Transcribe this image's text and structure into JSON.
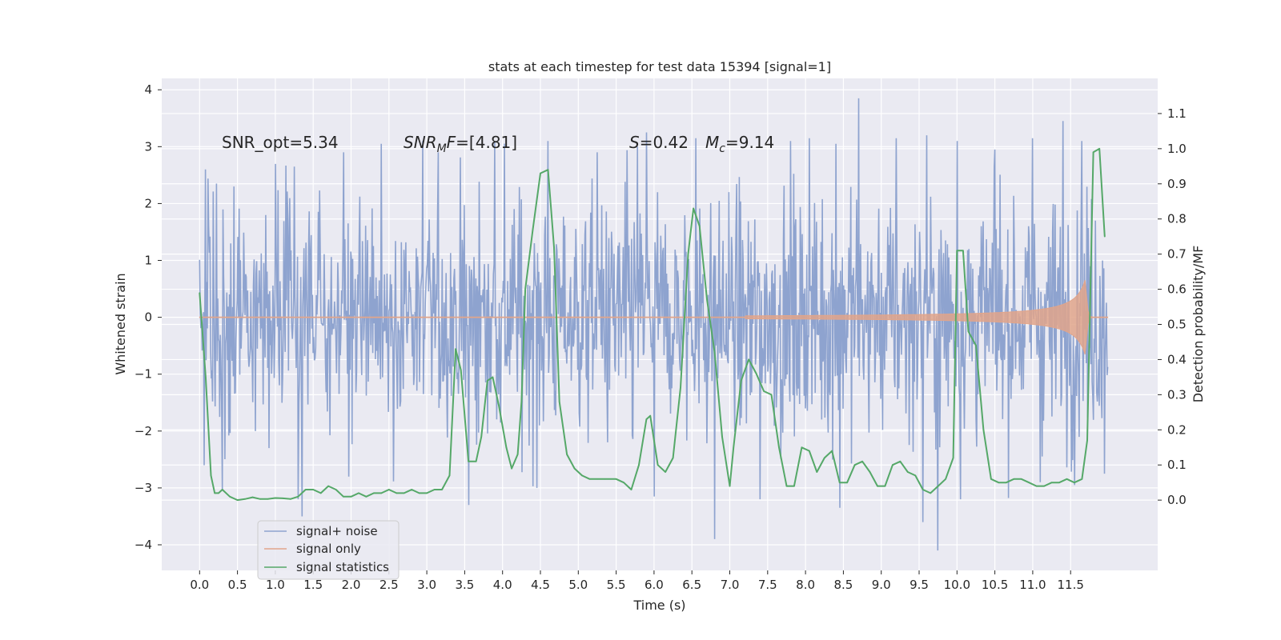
{
  "chart_data": {
    "type": "line",
    "title": "stats at each timestep for test data 15394 [signal=1]",
    "xlabel": "Time (s)",
    "ylabel": "Whitened strain",
    "y2label": "Detection probability/MF",
    "xlim": [
      -0.5,
      12.65
    ],
    "ylim": [
      -4.45,
      4.2
    ],
    "y2lim": [
      -0.2,
      1.2
    ],
    "x_ticks": [
      0.0,
      0.5,
      1.0,
      1.5,
      2.0,
      2.5,
      3.0,
      3.5,
      4.0,
      4.5,
      5.0,
      5.5,
      6.0,
      6.5,
      7.0,
      7.5,
      8.0,
      8.5,
      9.0,
      9.5,
      10.0,
      10.5,
      11.0,
      11.5
    ],
    "x_tick_labels": [
      "0.0",
      "0.5",
      "1.0",
      "1.5",
      "2.0",
      "2.5",
      "3.0",
      "3.5",
      "4.0",
      "4.5",
      "5.0",
      "5.5",
      "6.0",
      "6.5",
      "7.0",
      "7.5",
      "8.0",
      "8.5",
      "9.0",
      "9.5",
      "10.0",
      "10.5",
      "11.0",
      "11.5"
    ],
    "y_ticks": [
      4,
      3,
      2,
      1,
      0,
      -1,
      -2,
      -3,
      -4
    ],
    "y_tick_labels": [
      "4",
      "3",
      "2",
      "1",
      "0",
      "−1",
      "−2",
      "−3",
      "−4"
    ],
    "y2_ticks": [
      1.1,
      1.0,
      0.9,
      0.8,
      0.7,
      0.6,
      0.5,
      0.4,
      0.3,
      0.2,
      0.1,
      0.0
    ],
    "y2_tick_labels": [
      "1.1",
      "1.0",
      "0.9",
      "0.8",
      "0.7",
      "0.6",
      "0.5",
      "0.4",
      "0.3",
      "0.2",
      "0.1",
      "0.0"
    ],
    "grid": true,
    "legend_position": "lower-left",
    "annotations": {
      "snr_opt": "SNR_opt=5.34",
      "snr_mf_sym": "SNR",
      "snr_mf_sub": "M",
      "snr_mf_rest": "F",
      "snr_mf_value": "=[4.81]",
      "s_sym": "S",
      "s_value": "=0.42",
      "mc_sym": "M",
      "mc_sub": "c",
      "mc_value": "=9.14"
    },
    "series": [
      {
        "name": "signal+ noise",
        "color": "#8ea3cf",
        "axis": "left",
        "kind": "noise",
        "x_range": [
          0.0,
          11.99
        ],
        "typical_amplitude": 1.2,
        "upper_peaks": [
          [
            0.08,
            2.6
          ],
          [
            0.22,
            2.35
          ],
          [
            0.45,
            2.3
          ],
          [
            1.25,
            2.65
          ],
          [
            1.9,
            2.9
          ],
          [
            2.4,
            3.05
          ],
          [
            2.95,
            3.1
          ],
          [
            3.15,
            2.9
          ],
          [
            3.9,
            3.1
          ],
          [
            4.6,
            3.1
          ],
          [
            5.25,
            2.9
          ],
          [
            5.78,
            3.0
          ],
          [
            5.9,
            3.25
          ],
          [
            6.55,
            3.15
          ],
          [
            7.8,
            3.1
          ],
          [
            8.05,
            3.15
          ],
          [
            8.4,
            3.05
          ],
          [
            8.7,
            3.85
          ],
          [
            9.2,
            3.15
          ],
          [
            9.6,
            3.2
          ],
          [
            10.0,
            3.1
          ],
          [
            10.5,
            2.95
          ],
          [
            11.0,
            3.15
          ],
          [
            11.4,
            3.45
          ],
          [
            11.65,
            3.1
          ]
        ],
        "lower_peaks": [
          [
            0.06,
            -2.6
          ],
          [
            0.3,
            -3.05
          ],
          [
            1.3,
            -3.2
          ],
          [
            1.35,
            -3.5
          ],
          [
            3.55,
            -3.3
          ],
          [
            4.45,
            -3.0
          ],
          [
            6.0,
            -3.15
          ],
          [
            6.8,
            -3.9
          ],
          [
            7.4,
            -3.2
          ],
          [
            8.45,
            -3.35
          ],
          [
            9.55,
            -3.6
          ],
          [
            9.75,
            -4.1
          ],
          [
            10.05,
            -3.2
          ],
          [
            11.1,
            -2.9
          ],
          [
            11.55,
            -2.95
          ],
          [
            11.95,
            -2.75
          ]
        ]
      },
      {
        "name": "signal only",
        "color": "#e1a58b",
        "axis": "left",
        "kind": "chirp",
        "x_range": [
          0.0,
          11.99
        ],
        "onset": 7.2,
        "merger": 11.7,
        "peak_amplitude": 0.7
      },
      {
        "name": "signal statistics",
        "color": "#55a868",
        "axis": "right",
        "kind": "line",
        "x": [
          0.0,
          0.08,
          0.15,
          0.2,
          0.25,
          0.3,
          0.4,
          0.5,
          0.6,
          0.7,
          0.8,
          0.9,
          1.0,
          1.1,
          1.2,
          1.3,
          1.4,
          1.5,
          1.6,
          1.7,
          1.8,
          1.9,
          2.0,
          2.1,
          2.2,
          2.3,
          2.4,
          2.5,
          2.6,
          2.7,
          2.8,
          2.9,
          3.0,
          3.1,
          3.2,
          3.3,
          3.38,
          3.45,
          3.55,
          3.65,
          3.72,
          3.8,
          3.87,
          3.95,
          4.05,
          4.12,
          4.2,
          4.25,
          4.3,
          4.4,
          4.5,
          4.6,
          4.68,
          4.75,
          4.85,
          4.95,
          5.05,
          5.15,
          5.25,
          5.35,
          5.5,
          5.6,
          5.7,
          5.8,
          5.9,
          5.95,
          6.05,
          6.15,
          6.25,
          6.35,
          6.45,
          6.52,
          6.6,
          6.7,
          6.8,
          6.9,
          7.0,
          7.05,
          7.15,
          7.25,
          7.35,
          7.45,
          7.55,
          7.65,
          7.75,
          7.85,
          7.95,
          8.05,
          8.15,
          8.25,
          8.35,
          8.45,
          8.55,
          8.65,
          8.75,
          8.85,
          8.95,
          9.05,
          9.15,
          9.25,
          9.35,
          9.45,
          9.55,
          9.65,
          9.75,
          9.85,
          9.95,
          10.0,
          10.08,
          10.15,
          10.25,
          10.35,
          10.45,
          10.55,
          10.65,
          10.75,
          10.85,
          10.95,
          11.05,
          11.15,
          11.25,
          11.35,
          11.45,
          11.55,
          11.65,
          11.72,
          11.8,
          11.88,
          11.95
        ],
        "y": [
          0.59,
          0.35,
          0.07,
          0.02,
          0.02,
          0.03,
          0.01,
          0.0,
          0.003,
          0.008,
          0.003,
          0.003,
          0.006,
          0.005,
          0.003,
          0.01,
          0.03,
          0.03,
          0.02,
          0.04,
          0.03,
          0.01,
          0.01,
          0.02,
          0.01,
          0.02,
          0.02,
          0.03,
          0.02,
          0.02,
          0.03,
          0.02,
          0.02,
          0.03,
          0.03,
          0.07,
          0.43,
          0.37,
          0.11,
          0.11,
          0.18,
          0.34,
          0.35,
          0.27,
          0.15,
          0.09,
          0.13,
          0.28,
          0.6,
          0.77,
          0.93,
          0.94,
          0.72,
          0.28,
          0.13,
          0.09,
          0.07,
          0.06,
          0.06,
          0.06,
          0.06,
          0.05,
          0.03,
          0.1,
          0.23,
          0.24,
          0.1,
          0.08,
          0.12,
          0.32,
          0.7,
          0.83,
          0.78,
          0.57,
          0.42,
          0.18,
          0.04,
          0.15,
          0.34,
          0.4,
          0.36,
          0.31,
          0.3,
          0.15,
          0.04,
          0.04,
          0.15,
          0.14,
          0.08,
          0.12,
          0.14,
          0.05,
          0.05,
          0.1,
          0.11,
          0.08,
          0.04,
          0.04,
          0.1,
          0.11,
          0.08,
          0.07,
          0.03,
          0.02,
          0.04,
          0.06,
          0.12,
          0.71,
          0.71,
          0.48,
          0.44,
          0.2,
          0.06,
          0.05,
          0.05,
          0.06,
          0.06,
          0.05,
          0.04,
          0.04,
          0.05,
          0.05,
          0.06,
          0.05,
          0.06,
          0.17,
          0.99,
          1.0,
          0.75
        ]
      }
    ]
  }
}
